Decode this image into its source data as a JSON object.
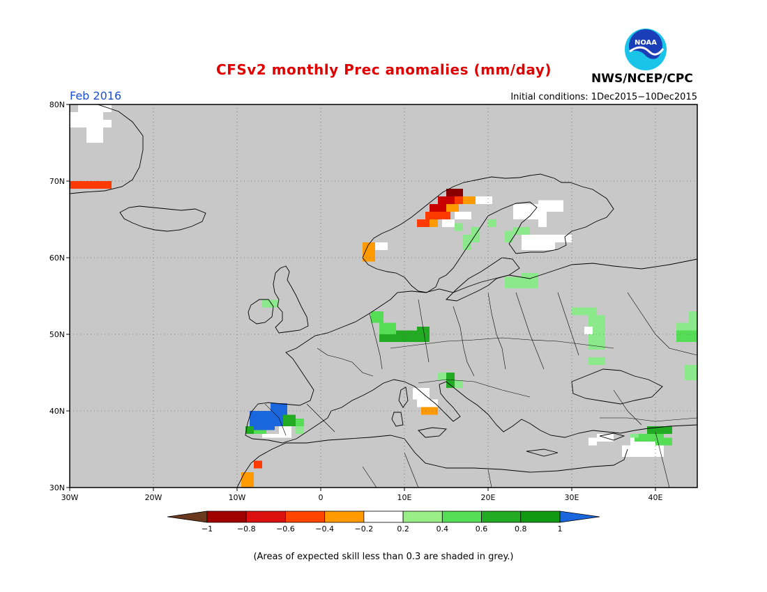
{
  "header": {
    "title": "CFSv2 monthly Prec anomalies (mm/day)",
    "title_color": "#e00000",
    "valid_month": "Feb 2016",
    "valid_month_color": "#1c4fd6",
    "initial_conditions": "Initial conditions: 1Dec2015−10Dec2015",
    "agency": "NWS/NCEP/CPC",
    "logo_text": "NOAA"
  },
  "map": {
    "lon_range": [
      -30,
      45
    ],
    "lat_range": [
      30,
      80
    ],
    "ocean_land_color": "#c8c8c8",
    "grid": true,
    "lon_ticks": [
      {
        "lon": -30,
        "label": "30W"
      },
      {
        "lon": -20,
        "label": "20W"
      },
      {
        "lon": -10,
        "label": "10W"
      },
      {
        "lon": 0,
        "label": "0"
      },
      {
        "lon": 10,
        "label": "10E"
      },
      {
        "lon": 20,
        "label": "20E"
      },
      {
        "lon": 30,
        "label": "30E"
      },
      {
        "lon": 40,
        "label": "40E"
      }
    ],
    "lat_ticks": [
      {
        "lat": 30,
        "label": "30N"
      },
      {
        "lat": 40,
        "label": "40N"
      },
      {
        "lat": 50,
        "label": "50N"
      },
      {
        "lat": 60,
        "label": "60N"
      },
      {
        "lat": 70,
        "label": "70N"
      },
      {
        "lat": 80,
        "label": "80N"
      }
    ],
    "anomaly_cells": [
      {
        "lon": -30,
        "lat": 69,
        "lon2": -25,
        "lat2": 70,
        "color": "#ff3a00"
      },
      {
        "lon": -30,
        "lat": 77,
        "lon2": -26,
        "lat2": 79,
        "color": "#ffffff"
      },
      {
        "lon": -26,
        "lat": 77,
        "lon2": -25,
        "lat2": 78,
        "color": "#ffffff"
      },
      {
        "lon": -28,
        "lat": 75,
        "lon2": -26,
        "lat2": 77,
        "color": "#ffffff"
      },
      {
        "lon": -29,
        "lat": 79,
        "lon2": -25,
        "lat2": 80,
        "color": "#ffffff"
      },
      {
        "lon": 5,
        "lat": 59.5,
        "lon2": 6.5,
        "lat2": 62,
        "color": "#ff9a00"
      },
      {
        "lon": 6.5,
        "lat": 61,
        "lon2": 8,
        "lat2": 62,
        "color": "#ffffff"
      },
      {
        "lon": 11.5,
        "lat": 64,
        "lon2": 13,
        "lat2": 65,
        "color": "#ff3a00"
      },
      {
        "lon": 12.5,
        "lat": 65,
        "lon2": 14,
        "lat2": 66,
        "color": "#ff3a00"
      },
      {
        "lon": 13,
        "lat": 66,
        "lon2": 15,
        "lat2": 67,
        "color": "#c80000"
      },
      {
        "lon": 14,
        "lat": 67,
        "lon2": 16,
        "lat2": 68,
        "color": "#c80000"
      },
      {
        "lon": 15,
        "lat": 68,
        "lon2": 17,
        "lat2": 69,
        "color": "#8a0000"
      },
      {
        "lon": 13,
        "lat": 64,
        "lon2": 14,
        "lat2": 65,
        "color": "#ff9a00"
      },
      {
        "lon": 14,
        "lat": 65,
        "lon2": 15.5,
        "lat2": 66,
        "color": "#ff3a00"
      },
      {
        "lon": 15,
        "lat": 66,
        "lon2": 16.5,
        "lat2": 67,
        "color": "#ff9a00"
      },
      {
        "lon": 16,
        "lat": 67,
        "lon2": 17,
        "lat2": 68,
        "color": "#ff3a00"
      },
      {
        "lon": 17,
        "lat": 67,
        "lon2": 18.5,
        "lat2": 68,
        "color": "#ff9a00"
      },
      {
        "lon": 18.5,
        "lat": 67,
        "lon2": 20.5,
        "lat2": 68,
        "color": "#ffffff"
      },
      {
        "lon": 14.5,
        "lat": 64,
        "lon2": 16,
        "lat2": 65,
        "color": "#ffffff"
      },
      {
        "lon": 16,
        "lat": 65,
        "lon2": 18,
        "lat2": 66,
        "color": "#ffffff"
      },
      {
        "lon": 16,
        "lat": 63.5,
        "lon2": 17,
        "lat2": 64.5,
        "color": "#8be88b"
      },
      {
        "lon": 23,
        "lat": 65,
        "lon2": 26,
        "lat2": 67,
        "color": "#ffffff"
      },
      {
        "lon": 26,
        "lat": 66,
        "lon2": 29,
        "lat2": 67.5,
        "color": "#ffffff"
      },
      {
        "lon": 26,
        "lat": 64,
        "lon2": 27,
        "lat2": 66,
        "color": "#ffffff"
      },
      {
        "lon": 24,
        "lat": 61,
        "lon2": 28,
        "lat2": 63,
        "color": "#ffffff"
      },
      {
        "lon": 28,
        "lat": 62,
        "lon2": 30,
        "lat2": 63,
        "color": "#ffffff"
      },
      {
        "lon": 23,
        "lat": 63,
        "lon2": 25,
        "lat2": 64,
        "color": "#8be88b"
      },
      {
        "lon": 22,
        "lat": 62,
        "lon2": 23,
        "lat2": 63.5,
        "color": "#8be88b"
      },
      {
        "lon": 17,
        "lat": 61,
        "lon2": 18,
        "lat2": 63,
        "color": "#8be88b"
      },
      {
        "lon": 18,
        "lat": 62,
        "lon2": 19,
        "lat2": 64,
        "color": "#8be88b"
      },
      {
        "lon": 20,
        "lat": 64,
        "lon2": 21,
        "lat2": 65,
        "color": "#8be88b"
      },
      {
        "lon": 22,
        "lat": 56,
        "lon2": 26,
        "lat2": 57.5,
        "color": "#8be88b"
      },
      {
        "lon": 24,
        "lat": 57,
        "lon2": 26,
        "lat2": 58,
        "color": "#8be88b"
      },
      {
        "lon": -7,
        "lat": 53.5,
        "lon2": -5,
        "lat2": 54.5,
        "color": "#8be88b"
      },
      {
        "lon": 6,
        "lat": 51.5,
        "lon2": 7.5,
        "lat2": 53,
        "color": "#55dd55"
      },
      {
        "lon": 7,
        "lat": 50,
        "lon2": 9,
        "lat2": 51.5,
        "color": "#55dd55"
      },
      {
        "lon": 7,
        "lat": 49,
        "lon2": 12.5,
        "lat2": 50,
        "color": "#22aa22"
      },
      {
        "lon": 9,
        "lat": 49.5,
        "lon2": 12,
        "lat2": 50.5,
        "color": "#22aa22"
      },
      {
        "lon": 11.5,
        "lat": 49,
        "lon2": 13,
        "lat2": 51,
        "color": "#22aa22"
      },
      {
        "lon": 30,
        "lat": 52.5,
        "lon2": 33,
        "lat2": 53.5,
        "color": "#8be88b"
      },
      {
        "lon": 32,
        "lat": 50.5,
        "lon2": 34,
        "lat2": 52.5,
        "color": "#8be88b"
      },
      {
        "lon": 32,
        "lat": 48,
        "lon2": 34,
        "lat2": 50.5,
        "color": "#8be88b"
      },
      {
        "lon": 31.5,
        "lat": 50,
        "lon2": 32.5,
        "lat2": 51,
        "color": "#ffffff"
      },
      {
        "lon": 32,
        "lat": 46,
        "lon2": 34,
        "lat2": 47,
        "color": "#8be88b"
      },
      {
        "lon": 42.5,
        "lat": 50.5,
        "lon2": 45,
        "lat2": 51.5,
        "color": "#8be88b"
      },
      {
        "lon": 42.5,
        "lat": 49,
        "lon2": 45,
        "lat2": 50.5,
        "color": "#55dd55"
      },
      {
        "lon": 44,
        "lat": 51.5,
        "lon2": 45,
        "lat2": 53,
        "color": "#8be88b"
      },
      {
        "lon": 43.5,
        "lat": 44,
        "lon2": 45,
        "lat2": 46,
        "color": "#8be88b"
      },
      {
        "lon": 14,
        "lat": 44,
        "lon2": 15,
        "lat2": 45,
        "color": "#8be88b"
      },
      {
        "lon": 15,
        "lat": 43,
        "lon2": 16,
        "lat2": 45,
        "color": "#22aa22"
      },
      {
        "lon": 16,
        "lat": 43,
        "lon2": 17,
        "lat2": 44,
        "color": "#8be88b"
      },
      {
        "lon": 11,
        "lat": 41.5,
        "lon2": 13,
        "lat2": 43,
        "color": "#ffffff"
      },
      {
        "lon": 11.5,
        "lat": 40.5,
        "lon2": 14,
        "lat2": 41.5,
        "color": "#ffffff"
      },
      {
        "lon": 12,
        "lat": 39.5,
        "lon2": 14,
        "lat2": 40.5,
        "color": "#ff9a00"
      },
      {
        "lon": -8.5,
        "lat": 37.5,
        "lon2": -5.5,
        "lat2": 40,
        "color": "#1a66dd"
      },
      {
        "lon": -6,
        "lat": 39,
        "lon2": -4,
        "lat2": 41,
        "color": "#1a66dd"
      },
      {
        "lon": -5.5,
        "lat": 38,
        "lon2": -4,
        "lat2": 39,
        "color": "#1a66dd"
      },
      {
        "lon": -9,
        "lat": 37,
        "lon2": -8,
        "lat2": 38,
        "color": "#22aa22"
      },
      {
        "lon": -8,
        "lat": 37,
        "lon2": -6.5,
        "lat2": 37.5,
        "color": "#55dd55"
      },
      {
        "lon": -5,
        "lat": 36.5,
        "lon2": -3.5,
        "lat2": 38,
        "color": "#ffffff"
      },
      {
        "lon": -4.5,
        "lat": 38,
        "lon2": -3,
        "lat2": 39.5,
        "color": "#22aa22"
      },
      {
        "lon": -3,
        "lat": 38,
        "lon2": -2,
        "lat2": 39,
        "color": "#55dd55"
      },
      {
        "lon": -3,
        "lat": 37,
        "lon2": -2,
        "lat2": 38,
        "color": "#8be88b"
      },
      {
        "lon": -7,
        "lat": 36.5,
        "lon2": -5,
        "lat2": 37,
        "color": "#ffffff"
      },
      {
        "lon": -9.5,
        "lat": 30,
        "lon2": -8,
        "lat2": 32,
        "color": "#ff9a00"
      },
      {
        "lon": -8,
        "lat": 32.5,
        "lon2": -7,
        "lat2": 33.5,
        "color": "#ff3a00"
      },
      {
        "lon": 33,
        "lat": 36,
        "lon2": 35,
        "lat2": 37,
        "color": "#ffffff"
      },
      {
        "lon": 32,
        "lat": 35.5,
        "lon2": 33,
        "lat2": 36.5,
        "color": "#ffffff"
      },
      {
        "lon": 36,
        "lat": 34,
        "lon2": 41,
        "lat2": 35.5,
        "color": "#ffffff"
      },
      {
        "lon": 37,
        "lat": 35.5,
        "lon2": 40,
        "lat2": 36.5,
        "color": "#ffffff"
      },
      {
        "lon": 37.5,
        "lat": 36,
        "lon2": 41,
        "lat2": 37,
        "color": "#55dd55"
      },
      {
        "lon": 39,
        "lat": 37,
        "lon2": 42,
        "lat2": 38,
        "color": "#22aa22"
      },
      {
        "lon": 40,
        "lat": 35.5,
        "lon2": 42,
        "lat2": 36.5,
        "color": "#55dd55"
      },
      {
        "lon": 37,
        "lat": 36.5,
        "lon2": 38,
        "lat2": 37,
        "color": "#8be88b"
      }
    ]
  },
  "colorbar": {
    "bins": [
      {
        "color": "#6b3a1e",
        "type": "arrow-left"
      },
      {
        "color": "#a00000"
      },
      {
        "color": "#dd1010"
      },
      {
        "color": "#ff4400"
      },
      {
        "color": "#ff9a00"
      },
      {
        "color": "#ffffff"
      },
      {
        "color": "#99ee88"
      },
      {
        "color": "#55dd55"
      },
      {
        "color": "#22aa22"
      },
      {
        "color": "#119911"
      },
      {
        "color": "#1a66dd",
        "type": "arrow-right"
      }
    ],
    "tick_labels": [
      "−1",
      "−0.8",
      "−0.6",
      "−0.4",
      "−0.2",
      "0.2",
      "0.4",
      "0.6",
      "0.8",
      "1"
    ]
  },
  "footnote": "(Areas of expected skill less than 0.3 are shaded in grey.)"
}
